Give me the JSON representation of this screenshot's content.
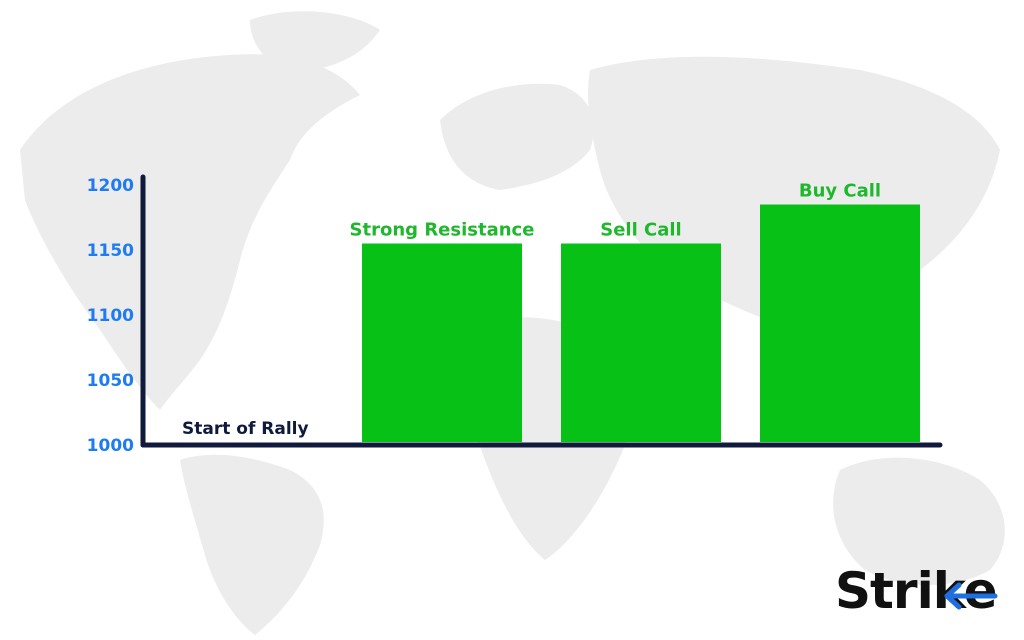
{
  "colors": {
    "bar": "#08c116",
    "bar_label": "#1fb82d",
    "tick_label": "#1f7cf0",
    "axis": "#101a3a",
    "category_label": "#101a3a",
    "map": "#ececec",
    "logo_text": "#111111",
    "logo_accent": "#1f6fe0"
  },
  "chart_data": {
    "type": "bar",
    "categories": [
      "Start of Rally",
      "Strong Resistance",
      "Sell Call",
      "Buy Call"
    ],
    "values": [
      1000,
      1155,
      1155,
      1185
    ],
    "ylim": [
      1000,
      1200
    ],
    "yticks": [
      "1200",
      "1150",
      "1100",
      "1050",
      "1000"
    ],
    "title": "",
    "xlabel": "",
    "ylabel": "",
    "grid": false,
    "legend": "none"
  },
  "logo": {
    "text": "Strike",
    "icon": "arrow-left-icon"
  }
}
